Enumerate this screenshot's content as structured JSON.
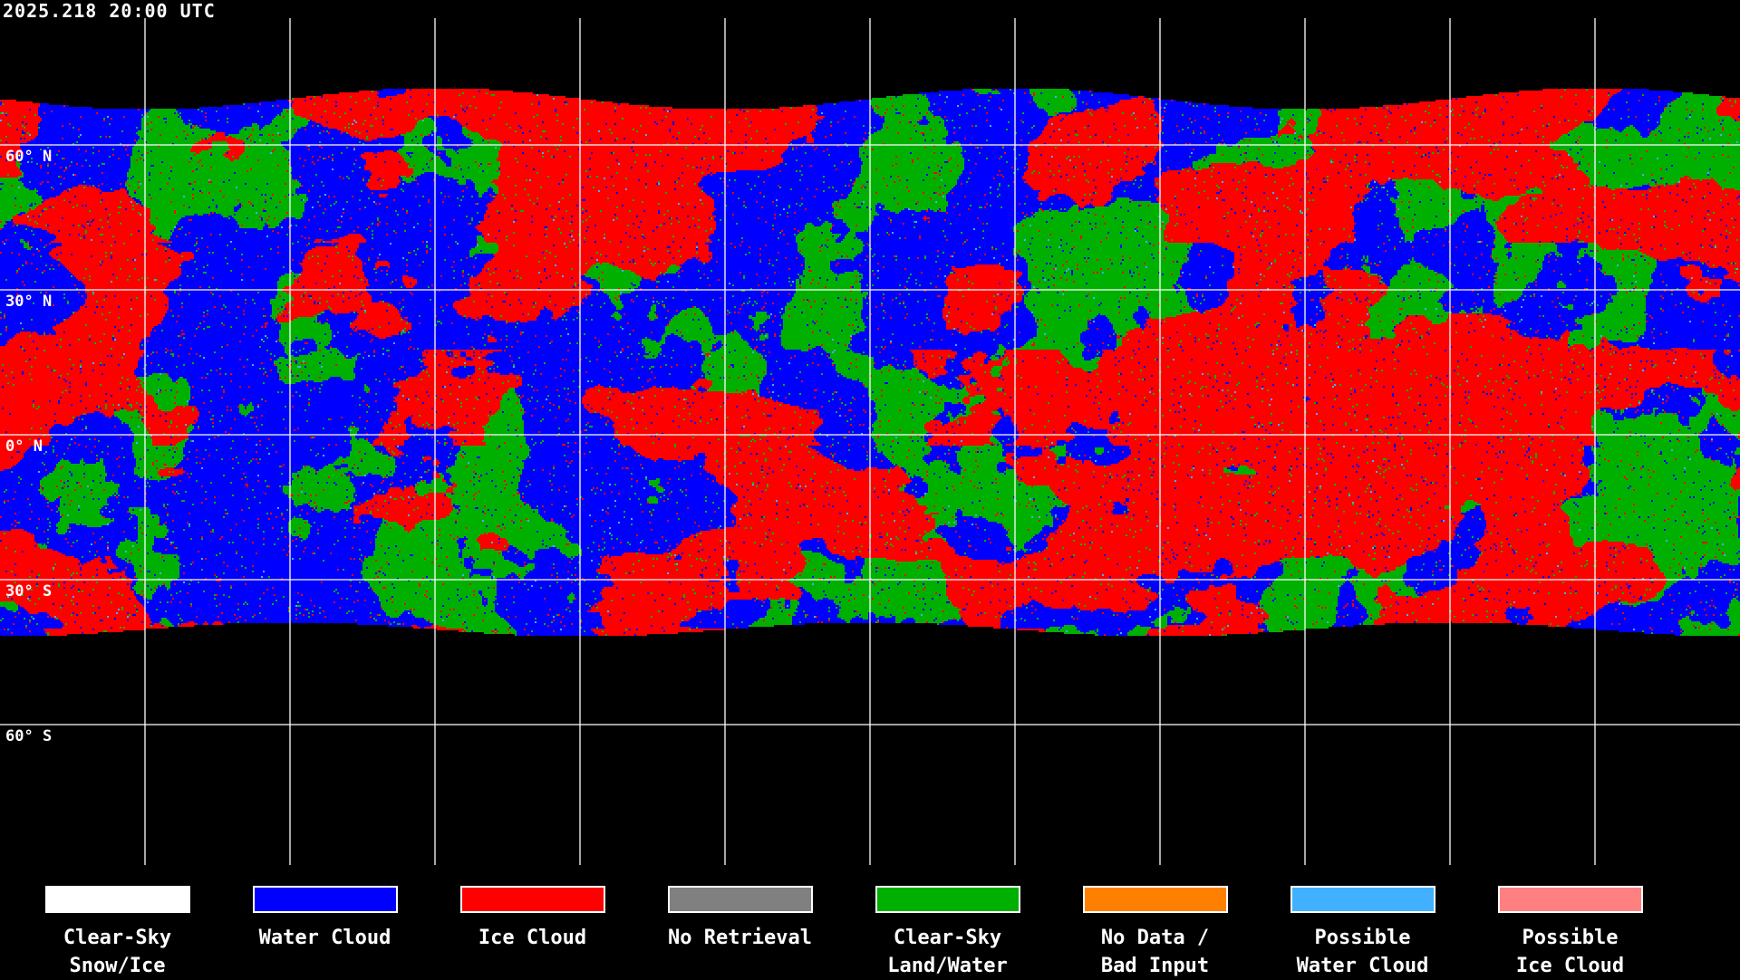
{
  "timestamp": "2025.218 20:00 UTC",
  "map": {
    "projection": "equirectangular",
    "gridlines": {
      "longitude_step_deg": 30,
      "latitude_step_deg": 30
    },
    "latitude_labels": [
      "60° N",
      "30° N",
      "0° N",
      "30° S",
      "60° S"
    ],
    "coastlines": "white"
  },
  "legend": [
    {
      "label": "Clear-Sky\nSnow/Ice",
      "color": "#ffffff"
    },
    {
      "label": "Water Cloud",
      "color": "#0000ff"
    },
    {
      "label": "Ice Cloud",
      "color": "#ff0000"
    },
    {
      "label": "No Retrieval",
      "color": "#808080"
    },
    {
      "label": "Clear-Sky\nLand/Water",
      "color": "#00b000"
    },
    {
      "label": "No Data /\nBad Input",
      "color": "#ff8000"
    },
    {
      "label": "Possible\nWater Cloud",
      "color": "#40b0ff"
    },
    {
      "label": "Possible\nIce Cloud",
      "color": "#ff8080"
    }
  ]
}
